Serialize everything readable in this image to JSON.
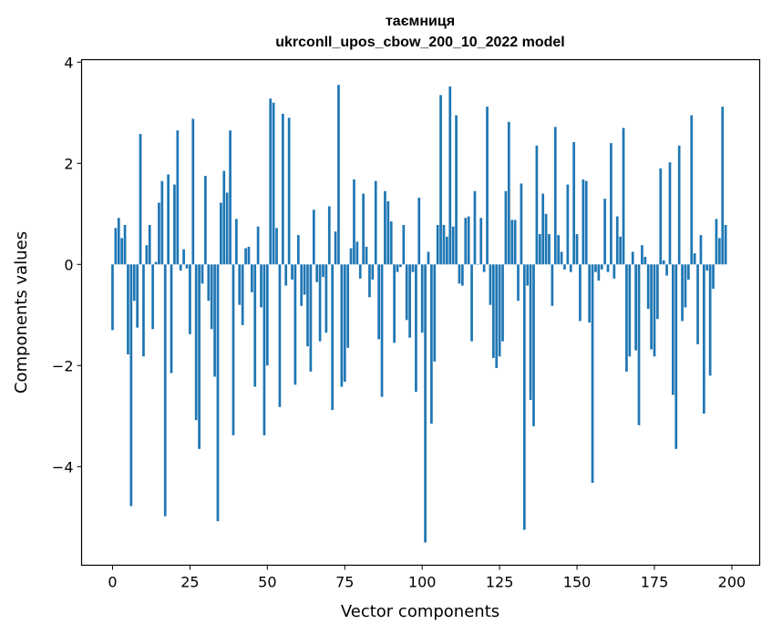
{
  "chart_data": {
    "type": "bar",
    "title_line1": "таємниця",
    "title_line2": "ukrconll_upos_cbow_200_10_2022 model",
    "xlabel": "Vector components",
    "ylabel": "Components values",
    "xlim": [
      -10,
      209
    ],
    "ylim": [
      -5.95,
      4.05
    ],
    "xticks": [
      0,
      25,
      50,
      75,
      100,
      125,
      150,
      175,
      200
    ],
    "xtick_labels": [
      "0",
      "25",
      "50",
      "75",
      "100",
      "125",
      "150",
      "175",
      "200"
    ],
    "yticks": [
      4,
      2,
      0,
      -2,
      -4
    ],
    "ytick_labels": [
      "4",
      "2",
      "0",
      "−2",
      "−4"
    ],
    "grid": false,
    "bar_color": "#1f77b4",
    "values": [
      -1.3,
      0.72,
      0.92,
      0.52,
      0.78,
      -1.78,
      -4.78,
      -0.72,
      -1.25,
      2.58,
      -1.82,
      0.38,
      0.78,
      -1.28,
      0.05,
      1.22,
      1.65,
      -4.98,
      1.78,
      -2.15,
      1.58,
      2.65,
      -0.12,
      0.3,
      -0.08,
      -1.38,
      2.88,
      -3.08,
      -3.65,
      -0.38,
      1.75,
      -0.72,
      -1.28,
      -2.22,
      -5.08,
      1.22,
      1.85,
      1.42,
      2.65,
      -3.38,
      0.9,
      -0.8,
      -1.2,
      0.32,
      0.35,
      -0.55,
      -2.42,
      0.75,
      -0.85,
      -3.38,
      -2.0,
      3.28,
      3.2,
      0.72,
      -2.82,
      2.98,
      -0.42,
      2.9,
      -0.3,
      -2.38,
      0.58,
      -0.82,
      -0.6,
      -1.62,
      -2.12,
      1.08,
      -0.35,
      -1.52,
      -0.25,
      -1.35,
      1.15,
      -2.88,
      0.65,
      3.55,
      -2.42,
      -2.32,
      -1.65,
      0.32,
      1.68,
      0.45,
      -0.28,
      1.4,
      0.35,
      -0.65,
      -0.3,
      1.65,
      -1.48,
      -2.62,
      1.45,
      1.25,
      0.85,
      -1.55,
      -0.15,
      -0.05,
      0.78,
      -1.1,
      -1.45,
      -0.15,
      -2.52,
      1.32,
      -1.35,
      -5.5,
      0.25,
      -3.15,
      -1.92,
      0.78,
      3.35,
      0.78,
      0.55,
      3.52,
      0.75,
      2.95,
      -0.38,
      -0.42,
      0.92,
      0.95,
      -1.52,
      1.45,
      0.0,
      0.92,
      -0.15,
      3.12,
      -0.8,
      -1.85,
      -2.05,
      -1.82,
      -1.52,
      1.45,
      2.82,
      0.88,
      0.88,
      -0.72,
      1.6,
      -5.25,
      -0.42,
      -2.68,
      -3.2,
      2.35,
      0.6,
      1.4,
      1.0,
      0.6,
      -0.82,
      2.72,
      0.58,
      0.25,
      -0.1,
      1.58,
      -0.15,
      2.42,
      0.6,
      -1.12,
      1.68,
      1.65,
      -1.15,
      -4.32,
      -0.15,
      -0.32,
      -0.1,
      1.3,
      -0.15,
      2.4,
      -0.28,
      0.95,
      0.55,
      2.7,
      -2.12,
      -1.82,
      0.25,
      -1.7,
      -3.18,
      0.38,
      0.15,
      -0.88,
      -1.68,
      -1.82,
      -1.08,
      1.9,
      0.08,
      -0.22,
      2.02,
      -2.58,
      -3.65,
      2.35,
      -1.12,
      -0.85,
      -0.3,
      2.95,
      0.22,
      -1.58,
      0.58,
      -2.95,
      -0.12,
      -2.2,
      -0.48,
      0.9,
      0.52,
      3.12,
      0.78
    ]
  }
}
